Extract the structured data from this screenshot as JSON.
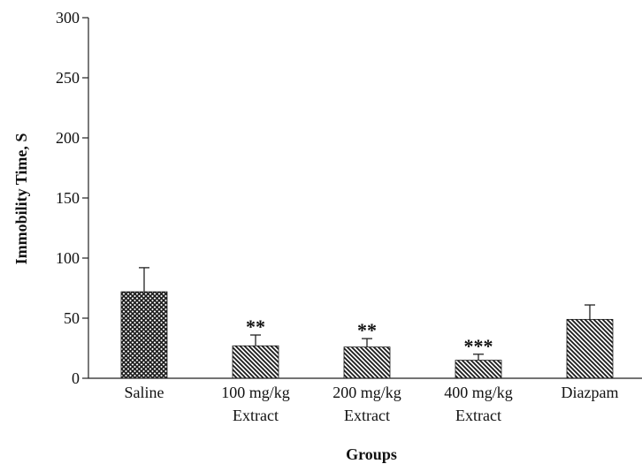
{
  "chart_data": {
    "type": "bar",
    "xlabel": "Groups",
    "ylabel": "Immobility Time, S",
    "ylim": [
      0,
      300
    ],
    "yticks": [
      0,
      50,
      100,
      150,
      200,
      250,
      300
    ],
    "grid": false,
    "categories": [
      [
        "Saline"
      ],
      [
        "100 mg/kg",
        "Extract"
      ],
      [
        "200 mg/kg",
        "Extract"
      ],
      [
        "400 mg/kg",
        "Extract"
      ],
      [
        "Diazpam"
      ]
    ],
    "values": [
      72,
      27,
      26,
      15,
      49
    ],
    "error": [
      20,
      9,
      7,
      5,
      12
    ],
    "significance": [
      "",
      "**",
      "**",
      "***",
      ""
    ],
    "patterns": [
      "crosshatch",
      "diagonal",
      "diagonal",
      "diagonal",
      "diagonal"
    ],
    "colors": {
      "bar": "#1a1a1a",
      "axis": "#222222"
    }
  }
}
